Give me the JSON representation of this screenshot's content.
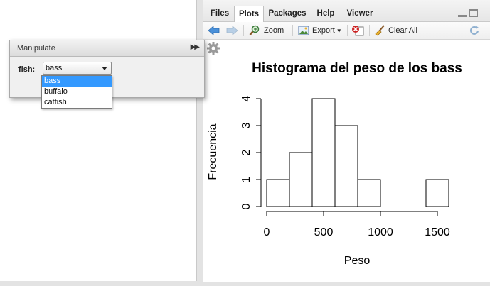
{
  "tabs": [
    "Files",
    "Plots",
    "Packages",
    "Help",
    "Viewer"
  ],
  "active_tab": "Plots",
  "toolbar": {
    "zoom_label": "Zoom",
    "export_label": "Export",
    "clear_all_label": "Clear All"
  },
  "manipulate": {
    "title": "Manipulate",
    "control_label": "fish:",
    "selected": "bass",
    "options": [
      "bass",
      "buffalo",
      "catfish"
    ]
  },
  "colors": {
    "dropdown_highlight": "#3399ff",
    "back_arrow": "#4a90d9",
    "clear_red": "#cc2222"
  },
  "chart_data": {
    "type": "bar",
    "title": "Histograma del peso de los bass",
    "xlabel": "Peso",
    "ylabel": "Frecuencia",
    "bins": [
      [
        0,
        200
      ],
      [
        200,
        400
      ],
      [
        400,
        600
      ],
      [
        600,
        800
      ],
      [
        800,
        1000
      ],
      [
        1000,
        1200
      ],
      [
        1200,
        1400
      ],
      [
        1400,
        1600
      ]
    ],
    "values": [
      1,
      2,
      4,
      3,
      1,
      0,
      0,
      1
    ],
    "xticks": [
      "0",
      "500",
      "1000",
      "1500"
    ],
    "yticks": [
      "0",
      "1",
      "2",
      "3",
      "4"
    ],
    "xlim": [
      0,
      1600
    ],
    "ylim": [
      0,
      4
    ],
    "grid": false
  }
}
